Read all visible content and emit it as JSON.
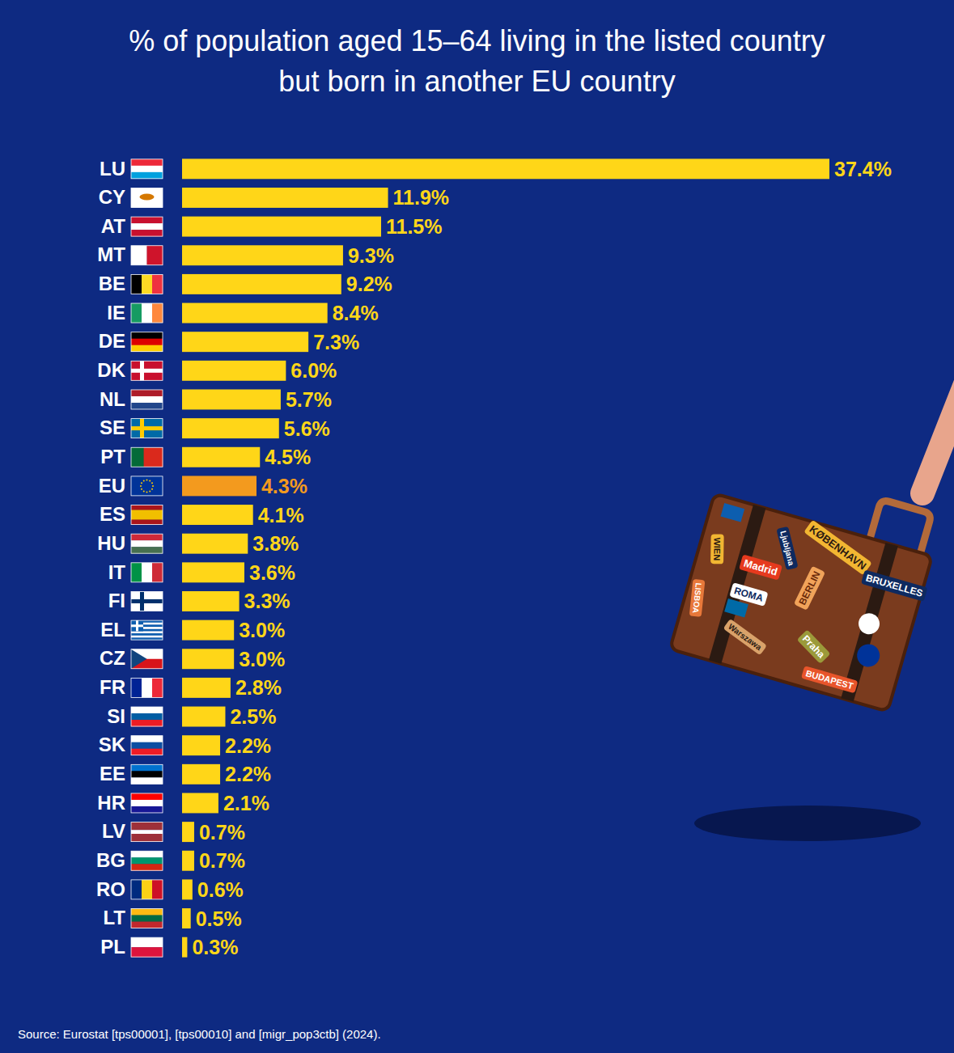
{
  "chart_data": {
    "type": "bar",
    "orientation": "horizontal",
    "title": "% of population aged 15–64 living in the listed country but born in another EU country",
    "categories": [
      "LU",
      "CY",
      "AT",
      "MT",
      "BE",
      "IE",
      "DE",
      "DK",
      "NL",
      "SE",
      "PT",
      "EU",
      "ES",
      "HU",
      "IT",
      "FI",
      "EL",
      "CZ",
      "FR",
      "SI",
      "SK",
      "EE",
      "HR",
      "LV",
      "BG",
      "RO",
      "LT",
      "PL"
    ],
    "values": [
      37.4,
      11.9,
      11.5,
      9.3,
      9.2,
      8.4,
      7.3,
      6.0,
      5.7,
      5.6,
      4.5,
      4.3,
      4.1,
      3.8,
      3.6,
      3.3,
      3.0,
      3.0,
      2.8,
      2.5,
      2.2,
      2.2,
      2.1,
      0.7,
      0.7,
      0.6,
      0.5,
      0.3
    ],
    "value_labels": [
      "37.4%",
      "11.9%",
      "11.5%",
      "9.3%",
      "9.2%",
      "8.4%",
      "7.3%",
      "6.0%",
      "5.7%",
      "5.6%",
      "4.5%",
      "4.3%",
      "4.1%",
      "3.8%",
      "3.6%",
      "3.3%",
      "3.0%",
      "3.0%",
      "2.8%",
      "2.5%",
      "2.2%",
      "2.2%",
      "2.1%",
      "0.7%",
      "0.7%",
      "0.6%",
      "0.5%",
      "0.3%"
    ],
    "colors": [
      "#ffd618",
      "#ffd618",
      "#ffd618",
      "#ffd618",
      "#ffd618",
      "#ffd618",
      "#ffd618",
      "#ffd618",
      "#ffd618",
      "#ffd618",
      "#ffd618",
      "#f39a1e",
      "#ffd618",
      "#ffd618",
      "#ffd618",
      "#ffd618",
      "#ffd618",
      "#ffd618",
      "#ffd618",
      "#ffd618",
      "#ffd618",
      "#ffd618",
      "#ffd618",
      "#ffd618",
      "#ffd618",
      "#ffd618",
      "#ffd618",
      "#ffd618"
    ],
    "xlim": [
      0,
      37.4
    ],
    "data_labels": true,
    "tick_labels": "y",
    "grid": false,
    "source": "Source: Eurostat [tps00001], [tps00010] and [migr_pop3ctb] (2024).",
    "illustration_texts": [
      "KØBENHAVN",
      "Ljubljana",
      "WIEN",
      "Madrid",
      "BERLIN",
      "BRUXELLES",
      "ROMA",
      "LISBOA",
      "Warszawa",
      "Praha",
      "BUDAPEST"
    ]
  }
}
